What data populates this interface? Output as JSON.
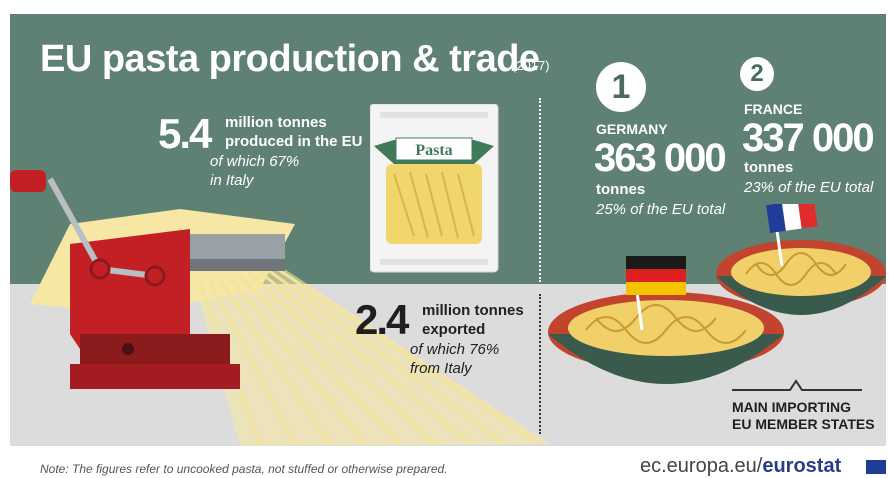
{
  "header": {
    "title": "EU pasta production & trade",
    "year": "(2017)"
  },
  "production": {
    "value": "5.4",
    "description_line1": "million tonnes",
    "description_line2": "produced in the EU",
    "sub_line1": "of which 67%",
    "sub_line2": "in Italy"
  },
  "package": {
    "label": "Pasta"
  },
  "exports": {
    "value": "2.4",
    "description_line1": "million tonnes",
    "description_line2": "exported",
    "sub_line1": "of which 76%",
    "sub_line2": "from Italy"
  },
  "importers": [
    {
      "rank": "1",
      "country": "GERMANY",
      "value": "363 000",
      "unit": "tonnes",
      "share": "25% of the EU total"
    },
    {
      "rank": "2",
      "country": "FRANCE",
      "value": "337 000",
      "unit": "tonnes",
      "share": "23% of the EU total"
    }
  ],
  "legend": {
    "line1": "MAIN IMPORTING",
    "line2": "EU MEMBER STATES"
  },
  "footer": {
    "note": "Note: The figures refer to uncooked pasta, not stuffed or otherwise prepared.",
    "site_prefix": "ec.europa.eu/",
    "site_brand": "eurostat"
  },
  "colors": {
    "top_background": "#5e8173",
    "bottom_background": "#dcdcdc",
    "machine_red": "#c32026",
    "pasta_yellow": "#f6e7a5",
    "bowl": "#c2432e"
  }
}
